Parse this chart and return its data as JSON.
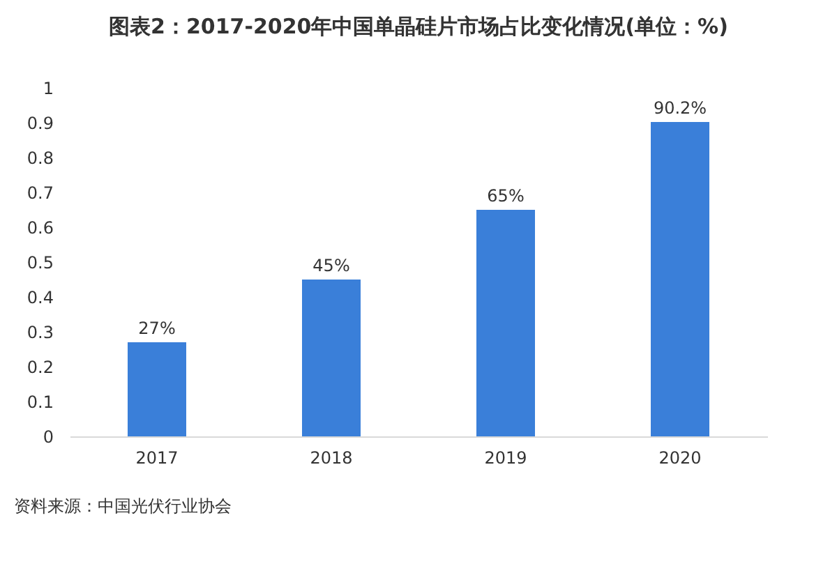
{
  "chart_data": {
    "type": "bar",
    "title": "图表2：2017-2020年中国单晶硅片市场占比变化情况(单位：%)",
    "categories": [
      "2017",
      "2018",
      "2019",
      "2020"
    ],
    "values": [
      0.27,
      0.45,
      0.65,
      0.902
    ],
    "value_labels": [
      "27%",
      "45%",
      "65%",
      "90.2%"
    ],
    "color": "#3a7fd9",
    "ylim": [
      0,
      1
    ],
    "yticks": [
      0,
      0.1,
      0.2,
      0.3,
      0.4,
      0.5,
      0.6,
      0.7,
      0.8,
      0.9,
      1
    ],
    "grid": false,
    "annotations": [
      "资料来源：中国光伏行业协会"
    ]
  }
}
